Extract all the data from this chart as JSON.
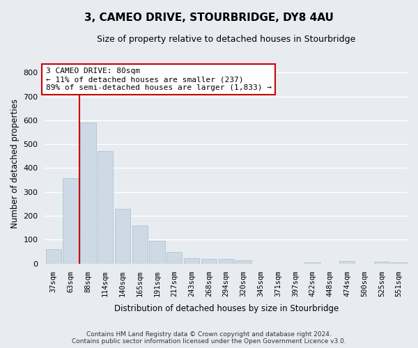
{
  "title": "3, CAMEO DRIVE, STOURBRIDGE, DY8 4AU",
  "subtitle": "Size of property relative to detached houses in Stourbridge",
  "xlabel": "Distribution of detached houses by size in Stourbridge",
  "ylabel": "Number of detached properties",
  "categories": [
    "37sqm",
    "63sqm",
    "88sqm",
    "114sqm",
    "140sqm",
    "165sqm",
    "191sqm",
    "217sqm",
    "243sqm",
    "268sqm",
    "294sqm",
    "320sqm",
    "345sqm",
    "371sqm",
    "397sqm",
    "422sqm",
    "448sqm",
    "474sqm",
    "500sqm",
    "525sqm",
    "551sqm"
  ],
  "values": [
    60,
    357,
    590,
    470,
    230,
    160,
    95,
    48,
    22,
    20,
    18,
    14,
    0,
    0,
    0,
    5,
    0,
    10,
    0,
    8,
    6
  ],
  "bar_color": "#cdd9e5",
  "bar_edge_color": "#a8bece",
  "vline_x": 1.5,
  "vline_color": "#cc0000",
  "annotation_text": "3 CAMEO DRIVE: 80sqm\n← 11% of detached houses are smaller (237)\n89% of semi-detached houses are larger (1,833) →",
  "annotation_box_facecolor": "white",
  "annotation_box_edgecolor": "#cc0000",
  "ylim": [
    0,
    840
  ],
  "yticks": [
    0,
    100,
    200,
    300,
    400,
    500,
    600,
    700,
    800
  ],
  "bg_color": "#e8ecf0",
  "grid_color": "#ffffff",
  "footer_line1": "Contains HM Land Registry data © Crown copyright and database right 2024.",
  "footer_line2": "Contains public sector information licensed under the Open Government Licence v3.0."
}
